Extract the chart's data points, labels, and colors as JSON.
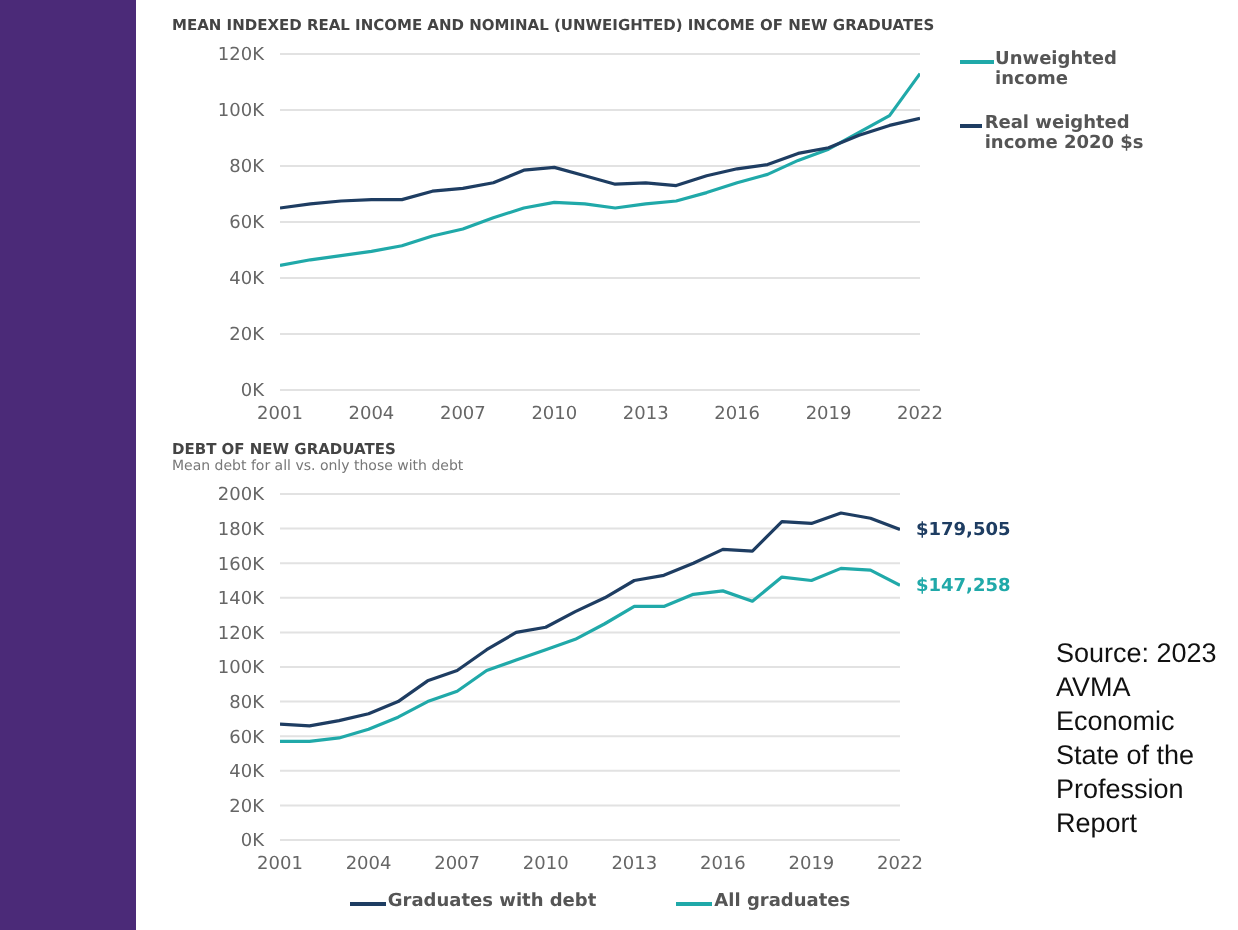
{
  "chart_data": [
    {
      "type": "line",
      "title": "MEAN INDEXED REAL INCOME AND NOMINAL (UNWEIGHTED) INCOME OF NEW GRADUATES",
      "x": [
        2001,
        2002,
        2003,
        2004,
        2005,
        2006,
        2007,
        2008,
        2009,
        2010,
        2011,
        2012,
        2013,
        2014,
        2015,
        2016,
        2017,
        2018,
        2019,
        2020,
        2021,
        2022
      ],
      "xlim": [
        2001,
        2022
      ],
      "xticks": [
        2001,
        2004,
        2007,
        2010,
        2013,
        2016,
        2019,
        2022
      ],
      "ylim": [
        0,
        120000
      ],
      "yticks": [
        {
          "value": 0,
          "label": "0K"
        },
        {
          "value": 20000,
          "label": "20K"
        },
        {
          "value": 40000,
          "label": "40K"
        },
        {
          "value": 60000,
          "label": "60K"
        },
        {
          "value": 80000,
          "label": "80K"
        },
        {
          "value": 100000,
          "label": "100K"
        },
        {
          "value": 120000,
          "label": "120K"
        }
      ],
      "grid": "y",
      "legend": "top right",
      "series": [
        {
          "name": "Unweighted income",
          "color": "#20a9a9",
          "values": [
            44500,
            46500,
            48000,
            49500,
            51500,
            55000,
            57500,
            61500,
            65000,
            67000,
            66500,
            65000,
            66500,
            67500,
            70500,
            74000,
            77000,
            82000,
            86000,
            92000,
            98000,
            113000
          ]
        },
        {
          "name": "Real weighted income 2020 $s",
          "color": "#1e3d62",
          "values": [
            65000,
            66500,
            67500,
            68000,
            68000,
            71000,
            72000,
            74000,
            78500,
            79500,
            76500,
            73500,
            74000,
            73000,
            76500,
            79000,
            80500,
            84500,
            86500,
            91000,
            94500,
            97000
          ]
        }
      ]
    },
    {
      "type": "line",
      "title": "DEBT OF NEW GRADUATES",
      "subtitle": "Mean debt for all vs. only those with debt",
      "x": [
        2001,
        2002,
        2003,
        2004,
        2005,
        2006,
        2007,
        2008,
        2009,
        2010,
        2011,
        2012,
        2013,
        2014,
        2015,
        2016,
        2017,
        2018,
        2019,
        2020,
        2021,
        2022
      ],
      "xlim": [
        2001,
        2022
      ],
      "xticks": [
        2001,
        2004,
        2007,
        2010,
        2013,
        2016,
        2019,
        2022
      ],
      "ylim": [
        0,
        200000
      ],
      "yticks": [
        {
          "value": 0,
          "label": "0K"
        },
        {
          "value": 20000,
          "label": "20K"
        },
        {
          "value": 40000,
          "label": "40K"
        },
        {
          "value": 60000,
          "label": "60K"
        },
        {
          "value": 80000,
          "label": "80K"
        },
        {
          "value": 100000,
          "label": "100K"
        },
        {
          "value": 120000,
          "label": "120K"
        },
        {
          "value": 140000,
          "label": "140K"
        },
        {
          "value": 160000,
          "label": "160K"
        },
        {
          "value": 180000,
          "label": "180K"
        },
        {
          "value": 200000,
          "label": "200K"
        }
      ],
      "grid": "y",
      "legend": "bottom",
      "annotations": [
        "Source: 2023 AVMA Economic State of the Profession Report"
      ],
      "series": [
        {
          "name": "Graduates with debt",
          "color": "#1e3d62",
          "values": [
            67000,
            66000,
            69000,
            73000,
            80000,
            92000,
            98000,
            110000,
            120000,
            123000,
            132000,
            140000,
            150000,
            153000,
            160000,
            168000,
            167000,
            184000,
            183000,
            189000,
            186000,
            179505
          ],
          "value_labels": [
            null,
            null,
            null,
            null,
            null,
            null,
            null,
            null,
            null,
            null,
            null,
            null,
            null,
            null,
            null,
            null,
            null,
            null,
            null,
            null,
            null,
            "$179,505"
          ]
        },
        {
          "name": "All graduates",
          "color": "#20a9a9",
          "values": [
            57000,
            57000,
            59000,
            64000,
            71000,
            80000,
            86000,
            98000,
            104000,
            110000,
            116000,
            125000,
            135000,
            135000,
            142000,
            144000,
            138000,
            152000,
            150000,
            157000,
            156000,
            147258
          ],
          "value_labels": [
            null,
            null,
            null,
            null,
            null,
            null,
            null,
            null,
            null,
            null,
            null,
            null,
            null,
            null,
            null,
            null,
            null,
            null,
            null,
            null,
            null,
            "$147,258"
          ]
        }
      ]
    }
  ]
}
